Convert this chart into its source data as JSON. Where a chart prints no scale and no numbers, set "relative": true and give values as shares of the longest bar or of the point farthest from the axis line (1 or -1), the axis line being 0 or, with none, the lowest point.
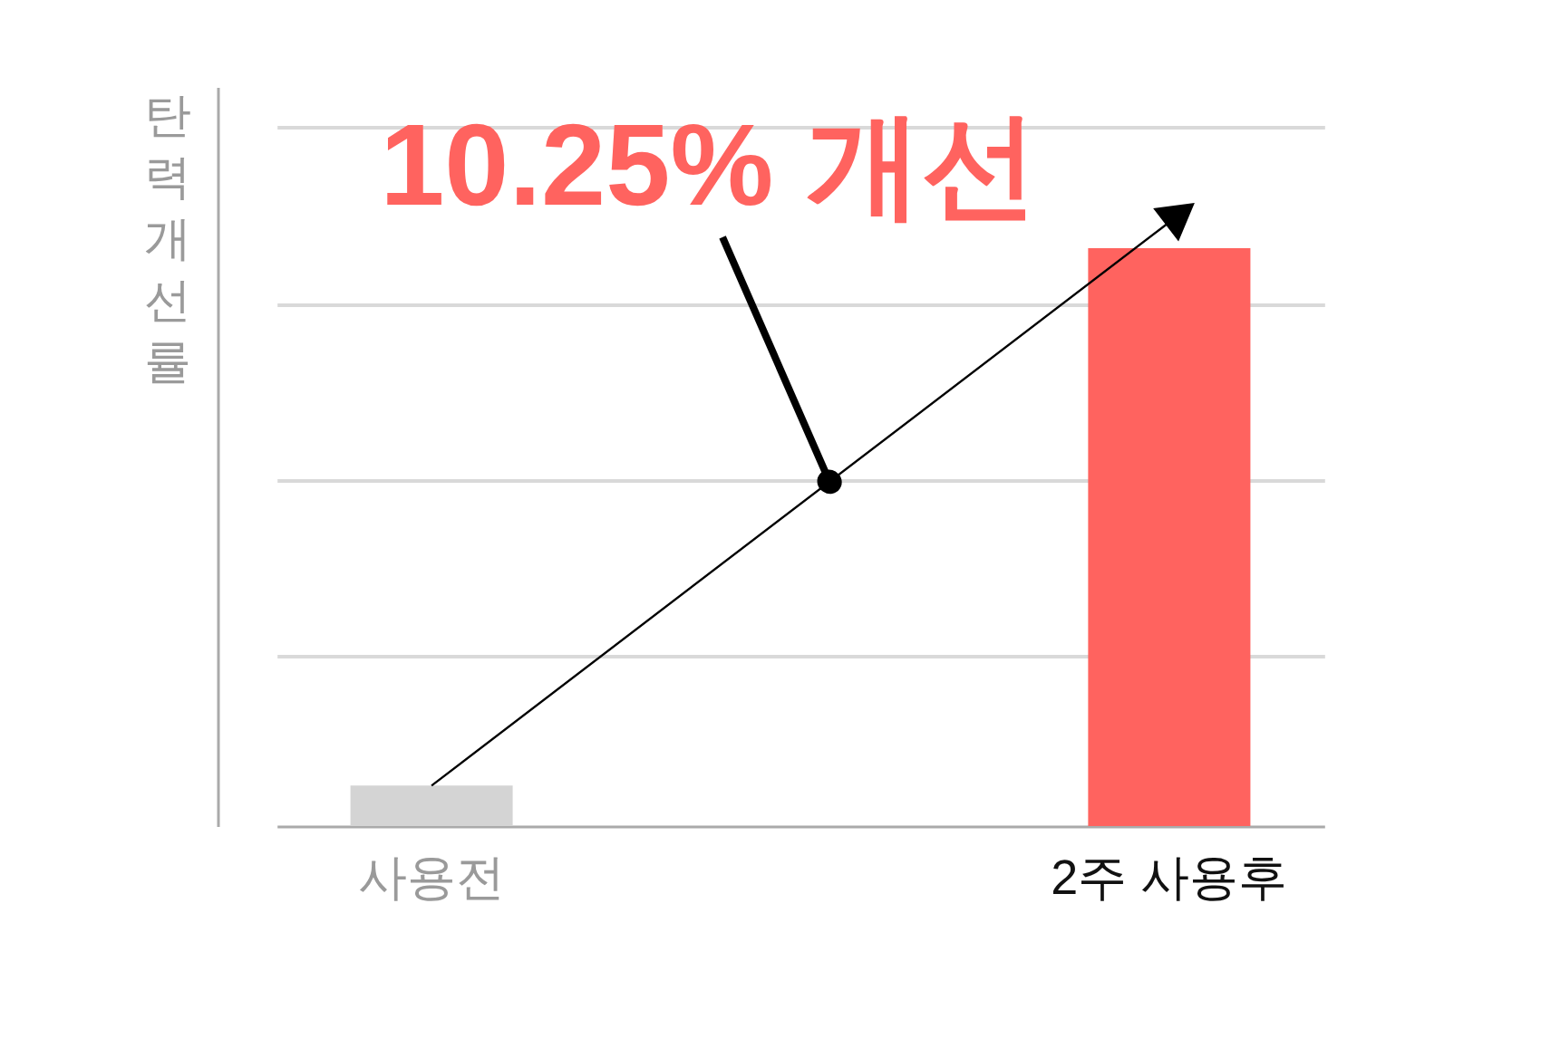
{
  "chart_data": {
    "type": "bar",
    "categories": [
      "사용전",
      "2주 사용후"
    ],
    "values": [
      0.07,
      1
    ],
    "colors": [
      "#d4d4d4",
      "#ff635f"
    ],
    "relative": true,
    "ylabel": "탄력개선률",
    "annotations": [
      "10.25% 개선"
    ],
    "grid": "y"
  }
}
